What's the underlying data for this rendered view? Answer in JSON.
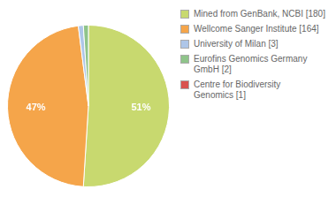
{
  "chart_data": {
    "type": "pie",
    "categories": [
      "Mined from GenBank, NCBI [180]",
      "Wellcome Sanger Institute [164]",
      "University of Milan [3]",
      "Eurofins Genomics Germany GmbH [2]",
      "Centre for Biodiversity\nGenomics [1]"
    ],
    "values": [
      51,
      47,
      1,
      1,
      0
    ],
    "value_labels": [
      "51%",
      "47%",
      null,
      null,
      null
    ],
    "colors": [
      "#c8d96f",
      "#f5a54a",
      "#aec6e8",
      "#8fc48a",
      "#d9534f"
    ],
    "data_labels": true,
    "legend": "right"
  }
}
